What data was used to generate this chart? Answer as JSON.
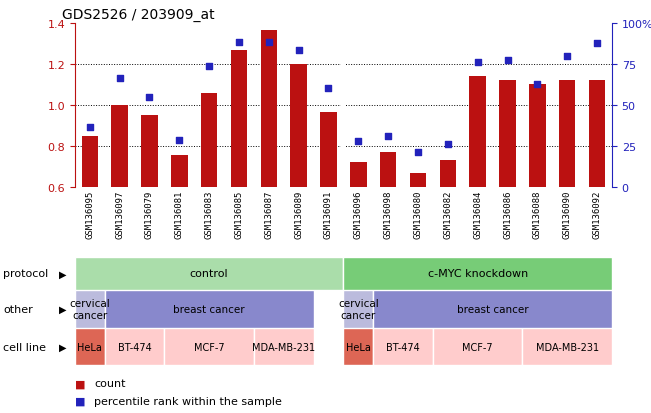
{
  "title": "GDS2526 / 203909_at",
  "samples": [
    "GSM136095",
    "GSM136097",
    "GSM136079",
    "GSM136081",
    "GSM136083",
    "GSM136085",
    "GSM136087",
    "GSM136089",
    "GSM136091",
    "GSM136096",
    "GSM136098",
    "GSM136080",
    "GSM136082",
    "GSM136084",
    "GSM136086",
    "GSM136088",
    "GSM136090",
    "GSM136092"
  ],
  "bar_values": [
    0.845,
    1.0,
    0.95,
    0.755,
    1.06,
    1.27,
    1.365,
    1.2,
    0.965,
    0.72,
    0.77,
    0.665,
    0.73,
    1.14,
    1.12,
    1.1,
    1.12,
    1.12
  ],
  "dot_values": [
    0.89,
    1.13,
    1.04,
    0.83,
    1.19,
    1.305,
    1.305,
    1.27,
    1.08,
    0.825,
    0.845,
    0.77,
    0.81,
    1.21,
    1.22,
    1.1,
    1.24,
    1.3
  ],
  "ylim": [
    0.6,
    1.4
  ],
  "yticks_left": [
    0.6,
    0.8,
    1.0,
    1.2,
    1.4
  ],
  "yticks_right_pct": [
    0,
    25,
    50,
    75,
    100
  ],
  "bar_color": "#bb1111",
  "dot_color": "#2222bb",
  "bg_color": "#ffffff",
  "xlabels_bg": "#cccccc",
  "protocol_groups": [
    {
      "label": "control",
      "start": 0,
      "end": 9,
      "color": "#aaddaa"
    },
    {
      "label": "c-MYC knockdown",
      "start": 9,
      "end": 18,
      "color": "#77cc77"
    }
  ],
  "other_groups": [
    {
      "label": "cervical\ncancer",
      "start": 0,
      "end": 1,
      "color": "#bbbbdd"
    },
    {
      "label": "breast cancer",
      "start": 1,
      "end": 8,
      "color": "#8888cc"
    },
    {
      "label": "cervical\ncancer",
      "start": 9,
      "end": 10,
      "color": "#bbbbdd"
    },
    {
      "label": "breast cancer",
      "start": 10,
      "end": 18,
      "color": "#8888cc"
    }
  ],
  "cellline_groups": [
    {
      "label": "HeLa",
      "start": 0,
      "end": 1,
      "color": "#dd6655"
    },
    {
      "label": "BT-474",
      "start": 1,
      "end": 3,
      "color": "#ffcccc"
    },
    {
      "label": "MCF-7",
      "start": 3,
      "end": 6,
      "color": "#ffcccc"
    },
    {
      "label": "MDA-MB-231",
      "start": 6,
      "end": 8,
      "color": "#ffcccc"
    },
    {
      "label": "HeLa",
      "start": 9,
      "end": 10,
      "color": "#dd6655"
    },
    {
      "label": "BT-474",
      "start": 10,
      "end": 12,
      "color": "#ffcccc"
    },
    {
      "label": "MCF-7",
      "start": 12,
      "end": 15,
      "color": "#ffcccc"
    },
    {
      "label": "MDA-MB-231",
      "start": 15,
      "end": 18,
      "color": "#ffcccc"
    }
  ]
}
